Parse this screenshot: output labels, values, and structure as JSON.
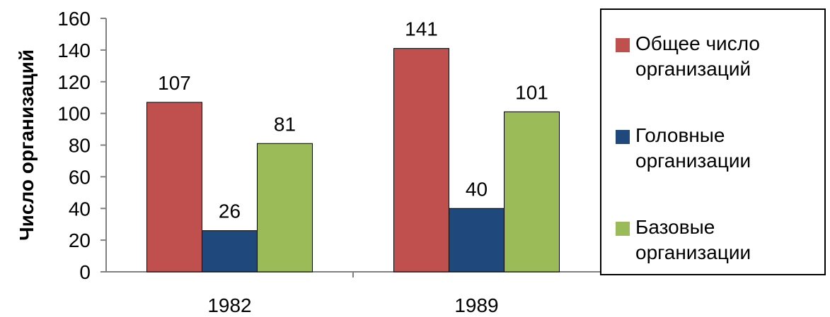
{
  "chart_data": {
    "type": "bar",
    "title": "",
    "xlabel": "",
    "ylabel": "Число организаций",
    "categories": [
      "1982",
      "1989"
    ],
    "series": [
      {
        "name": "Общее число организаций",
        "values": [
          107,
          141
        ],
        "color": "#C0504D"
      },
      {
        "name": "Головные организации",
        "values": [
          26,
          40
        ],
        "color": "#1F497D"
      },
      {
        "name": "Базовые организации",
        "values": [
          81,
          101
        ],
        "color": "#9BBB59"
      }
    ],
    "ylim": [
      0,
      160
    ],
    "yticks": [
      0,
      20,
      40,
      60,
      80,
      100,
      120,
      140,
      160
    ],
    "data_labels": true,
    "grid": false,
    "legend": "right"
  },
  "legend": {
    "items": [
      {
        "label": "Общее число\nорганизаций",
        "color": "#C0504D"
      },
      {
        "label": "Головные\nорганизации",
        "color": "#1F497D"
      },
      {
        "label": "Базовые\nорганизации",
        "color": "#9BBB59"
      }
    ]
  }
}
